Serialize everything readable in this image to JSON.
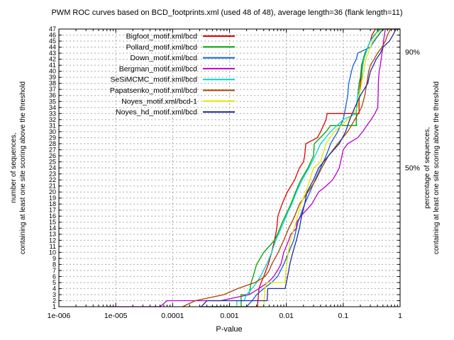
{
  "chart_data": {
    "type": "line",
    "title": "PWM ROC curves based on BCD_footprints.xml (used 48 of 48), average length=36 (flank length=11)",
    "xlabel": "P-value",
    "ylabel_left_line1": "number of sequences,",
    "ylabel_left_line2": "containing at least one site scoring above the threshold",
    "ylabel_right_line1": "percentage of sequences,",
    "ylabel_right_line2": "containing at least one site scoring above the threshold",
    "x_scale": "log",
    "xlim": [
      1e-06,
      1
    ],
    "ylim": [
      1,
      47
    ],
    "grid": true,
    "legend_position": "top-left-inside",
    "x_ticks": [
      {
        "label": "1e-006",
        "value": 1e-06
      },
      {
        "label": "1e-005",
        "value": 1e-05
      },
      {
        "label": "0.0001",
        "value": 0.0001
      },
      {
        "label": "0.001",
        "value": 0.001
      },
      {
        "label": "0.01",
        "value": 0.01
      },
      {
        "label": "0.1",
        "value": 0.1
      },
      {
        "label": "1",
        "value": 1
      }
    ],
    "y_ticks_left": [
      1,
      2,
      3,
      4,
      5,
      6,
      7,
      8,
      9,
      10,
      11,
      12,
      13,
      14,
      15,
      16,
      17,
      18,
      19,
      20,
      21,
      22,
      23,
      24,
      25,
      26,
      27,
      28,
      29,
      30,
      31,
      32,
      33,
      34,
      35,
      36,
      37,
      38,
      39,
      40,
      41,
      42,
      43,
      44,
      45,
      46,
      47
    ],
    "y_ticks_right": [
      {
        "label": "90%",
        "value": 43.2
      },
      {
        "label": "50%",
        "value": 24.0
      }
    ],
    "series": [
      {
        "name": "Bigfoot_motif.xml/bcd",
        "color": "#e10000",
        "points": [
          [
            0.0003,
            1
          ],
          [
            0.0031,
            1
          ],
          [
            0.0033,
            4
          ],
          [
            0.0036,
            5
          ],
          [
            0.004,
            6
          ],
          [
            0.0048,
            8
          ],
          [
            0.0055,
            10
          ],
          [
            0.0062,
            12
          ],
          [
            0.0068,
            14
          ],
          [
            0.0071,
            16
          ],
          [
            0.0084,
            18
          ],
          [
            0.0104,
            20
          ],
          [
            0.014,
            22
          ],
          [
            0.017,
            24
          ],
          [
            0.02,
            25
          ],
          [
            0.021,
            26
          ],
          [
            0.022,
            28
          ],
          [
            0.035,
            29
          ],
          [
            0.04,
            30
          ],
          [
            0.045,
            31
          ],
          [
            0.05,
            32
          ],
          [
            0.052,
            33
          ],
          [
            0.19,
            33
          ],
          [
            0.19,
            35
          ],
          [
            0.195,
            37
          ],
          [
            0.2,
            38
          ],
          [
            0.21,
            40
          ],
          [
            0.23,
            42
          ],
          [
            0.25,
            43
          ],
          [
            0.27,
            44
          ],
          [
            0.3,
            45
          ],
          [
            0.32,
            46
          ],
          [
            0.37,
            47
          ],
          [
            1,
            47
          ]
        ]
      },
      {
        "name": "Pollard_motif.xml/bcd",
        "color": "#00a400",
        "points": [
          [
            0.0004,
            1
          ],
          [
            0.0016,
            1
          ],
          [
            0.0016,
            3
          ],
          [
            0.0022,
            3
          ],
          [
            0.0024,
            5
          ],
          [
            0.0026,
            6
          ],
          [
            0.003,
            8
          ],
          [
            0.004,
            10
          ],
          [
            0.0062,
            12
          ],
          [
            0.007,
            13
          ],
          [
            0.0085,
            15
          ],
          [
            0.012,
            18
          ],
          [
            0.0145,
            20
          ],
          [
            0.018,
            22
          ],
          [
            0.024,
            24
          ],
          [
            0.03,
            26
          ],
          [
            0.031,
            28
          ],
          [
            0.05,
            30
          ],
          [
            0.06,
            31
          ],
          [
            0.17,
            31
          ],
          [
            0.17,
            33
          ],
          [
            0.175,
            35
          ],
          [
            0.18,
            36
          ],
          [
            0.19,
            38
          ],
          [
            0.2,
            39
          ],
          [
            0.21,
            41
          ],
          [
            0.24,
            43
          ],
          [
            0.27,
            44
          ],
          [
            0.3,
            45
          ],
          [
            0.35,
            46
          ],
          [
            0.45,
            47
          ],
          [
            1,
            47
          ]
        ]
      },
      {
        "name": "Down_motif.xml/bcd",
        "color": "#1060dc",
        "points": [
          [
            0.0005,
            1
          ],
          [
            0.002,
            1
          ],
          [
            0.0025,
            2
          ],
          [
            0.003,
            3
          ],
          [
            0.004,
            4
          ],
          [
            0.0055,
            5
          ],
          [
            0.007,
            6
          ],
          [
            0.009,
            8
          ],
          [
            0.011,
            10
          ],
          [
            0.0135,
            12
          ],
          [
            0.016,
            15
          ],
          [
            0.021,
            18
          ],
          [
            0.026,
            20
          ],
          [
            0.032,
            22
          ],
          [
            0.04,
            24
          ],
          [
            0.05,
            26
          ],
          [
            0.06,
            28
          ],
          [
            0.08,
            30
          ],
          [
            0.1,
            32
          ],
          [
            0.11,
            34
          ],
          [
            0.12,
            36
          ],
          [
            0.125,
            38
          ],
          [
            0.14,
            40
          ],
          [
            0.15,
            41
          ],
          [
            0.17,
            42
          ],
          [
            0.18,
            43
          ],
          [
            0.3,
            44
          ],
          [
            0.35,
            45
          ],
          [
            0.42,
            46
          ],
          [
            0.5,
            47
          ],
          [
            1,
            47
          ]
        ]
      },
      {
        "name": "Bergman_motif.xml/bcd",
        "color": "#b800d0",
        "points": [
          [
            7e-06,
            1
          ],
          [
            6e-05,
            1
          ],
          [
            8e-05,
            2
          ],
          [
            0.0007,
            2
          ],
          [
            0.0022,
            3
          ],
          [
            0.0033,
            4
          ],
          [
            0.0047,
            5
          ],
          [
            0.006,
            6
          ],
          [
            0.007,
            7
          ],
          [
            0.008,
            8
          ],
          [
            0.009,
            10
          ],
          [
            0.011,
            12
          ],
          [
            0.012,
            13
          ],
          [
            0.015,
            14
          ],
          [
            0.0152,
            15
          ],
          [
            0.018,
            16
          ],
          [
            0.028,
            18
          ],
          [
            0.037,
            20
          ],
          [
            0.05,
            21
          ],
          [
            0.065,
            22
          ],
          [
            0.075,
            23
          ],
          [
            0.085,
            24
          ],
          [
            0.09,
            25
          ],
          [
            0.095,
            26
          ],
          [
            0.1,
            27
          ],
          [
            0.12,
            28
          ],
          [
            0.18,
            29
          ],
          [
            0.22,
            30
          ],
          [
            0.26,
            31
          ],
          [
            0.31,
            32
          ],
          [
            0.36,
            33
          ],
          [
            0.405,
            34
          ],
          [
            0.41,
            36
          ],
          [
            0.415,
            38
          ],
          [
            0.42,
            39
          ],
          [
            0.43,
            40
          ],
          [
            0.45,
            41
          ],
          [
            0.465,
            42
          ],
          [
            0.48,
            43
          ],
          [
            0.5,
            44
          ],
          [
            0.51,
            45
          ],
          [
            0.53,
            46
          ],
          [
            0.55,
            47
          ],
          [
            1,
            47
          ]
        ]
      },
      {
        "name": "SeSiMCMC_motif.xml/bcd",
        "color": "#00d4d4",
        "points": [
          [
            0.0003,
            1
          ],
          [
            0.00135,
            1
          ],
          [
            0.00135,
            2
          ],
          [
            0.0018,
            2
          ],
          [
            0.002,
            3
          ],
          [
            0.0025,
            4
          ],
          [
            0.003,
            5
          ],
          [
            0.0035,
            6
          ],
          [
            0.0045,
            8
          ],
          [
            0.0055,
            10
          ],
          [
            0.0065,
            12
          ],
          [
            0.009,
            15
          ],
          [
            0.011,
            17
          ],
          [
            0.0125,
            18
          ],
          [
            0.015,
            20
          ],
          [
            0.019,
            22
          ],
          [
            0.025,
            24
          ],
          [
            0.032,
            26
          ],
          [
            0.04,
            28
          ],
          [
            0.06,
            30
          ],
          [
            0.1,
            32
          ],
          [
            0.17,
            33
          ],
          [
            0.175,
            35
          ],
          [
            0.18,
            36
          ],
          [
            0.2,
            37
          ],
          [
            0.21,
            38
          ],
          [
            0.215,
            40
          ],
          [
            0.23,
            42
          ],
          [
            0.27,
            44
          ],
          [
            0.3,
            45
          ],
          [
            0.36,
            46
          ],
          [
            0.42,
            47
          ],
          [
            1,
            47
          ]
        ]
      },
      {
        "name": "Papatsenko_motif.xml/bcd",
        "color": "#a84400",
        "points": [
          [
            0.00015,
            1
          ],
          [
            0.00025,
            2
          ],
          [
            0.0008,
            3
          ],
          [
            0.0014,
            4
          ],
          [
            0.0028,
            5
          ],
          [
            0.0042,
            6
          ],
          [
            0.005,
            7
          ],
          [
            0.0055,
            8
          ],
          [
            0.0072,
            10
          ],
          [
            0.009,
            12
          ],
          [
            0.011,
            14
          ],
          [
            0.0125,
            15
          ],
          [
            0.014,
            16
          ],
          [
            0.017,
            18
          ],
          [
            0.024,
            20
          ],
          [
            0.033,
            22
          ],
          [
            0.042,
            24
          ],
          [
            0.055,
            26
          ],
          [
            0.08,
            28
          ],
          [
            0.12,
            30
          ],
          [
            0.16,
            32
          ],
          [
            0.21,
            34
          ],
          [
            0.24,
            36
          ],
          [
            0.26,
            38
          ],
          [
            0.28,
            40
          ],
          [
            0.3,
            41
          ],
          [
            0.35,
            42
          ],
          [
            0.4,
            43
          ],
          [
            0.48,
            44
          ],
          [
            0.55,
            45
          ],
          [
            0.6,
            46
          ],
          [
            0.68,
            47
          ],
          [
            1,
            47
          ]
        ]
      },
      {
        "name": "Noyes_motif.xml/bcd-1",
        "color": "#e6e600",
        "points": [
          [
            0.0006,
            1
          ],
          [
            0.004,
            1
          ],
          [
            0.0042,
            4
          ],
          [
            0.0045,
            5
          ],
          [
            0.0095,
            5
          ],
          [
            0.0098,
            7
          ],
          [
            0.0102,
            8
          ],
          [
            0.0108,
            10
          ],
          [
            0.0118,
            12
          ],
          [
            0.0148,
            15
          ],
          [
            0.018,
            18
          ],
          [
            0.022,
            20
          ],
          [
            0.026,
            22
          ],
          [
            0.03,
            24
          ],
          [
            0.04,
            25
          ],
          [
            0.05,
            28
          ],
          [
            0.07,
            30
          ],
          [
            0.12,
            32
          ],
          [
            0.18,
            34
          ],
          [
            0.19,
            36
          ],
          [
            0.21,
            38
          ],
          [
            0.23,
            40
          ],
          [
            0.25,
            42
          ],
          [
            0.3,
            44
          ],
          [
            0.33,
            45
          ],
          [
            0.4,
            46
          ],
          [
            0.48,
            47
          ],
          [
            1,
            47
          ]
        ]
      },
      {
        "name": "Noyes_hd_motif.xml/bcd",
        "color": "#202ca0",
        "points": [
          [
            0.00032,
            1
          ],
          [
            0.0004,
            2
          ],
          [
            0.0046,
            2
          ],
          [
            0.0047,
            4
          ],
          [
            0.0095,
            4
          ],
          [
            0.01,
            5
          ],
          [
            0.0105,
            6
          ],
          [
            0.0115,
            8
          ],
          [
            0.013,
            10
          ],
          [
            0.015,
            12
          ],
          [
            0.017,
            14
          ],
          [
            0.0185,
            16
          ],
          [
            0.021,
            18
          ],
          [
            0.023,
            20
          ],
          [
            0.03,
            22
          ],
          [
            0.037,
            24
          ],
          [
            0.055,
            26
          ],
          [
            0.085,
            28
          ],
          [
            0.11,
            30
          ],
          [
            0.13,
            32
          ],
          [
            0.16,
            34
          ],
          [
            0.2,
            36
          ],
          [
            0.27,
            38
          ],
          [
            0.3,
            40
          ],
          [
            0.34,
            41
          ],
          [
            0.38,
            42
          ],
          [
            0.45,
            43
          ],
          [
            0.5,
            44
          ],
          [
            0.65,
            45
          ],
          [
            0.75,
            46
          ],
          [
            0.85,
            47
          ],
          [
            1,
            47
          ]
        ]
      }
    ]
  }
}
